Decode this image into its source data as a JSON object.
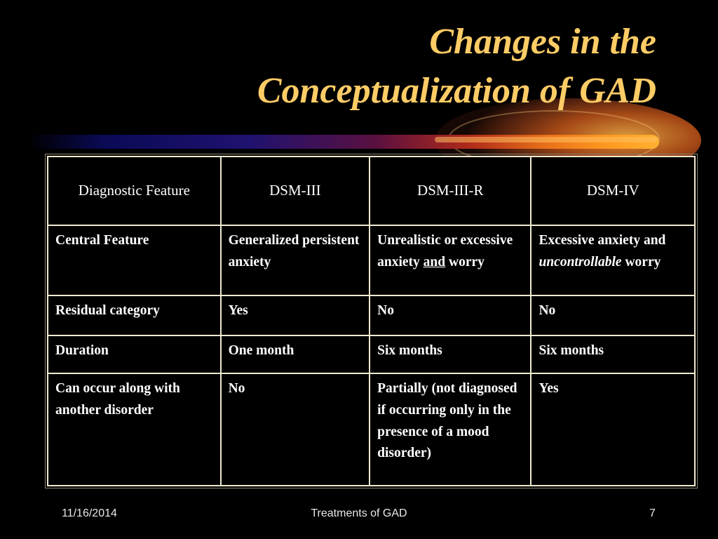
{
  "slide": {
    "title_line_1": "Changes in the",
    "title_line_2": "Conceptualization of GAD"
  },
  "table": {
    "headers": [
      "Diagnostic Feature",
      "DSM-III",
      "DSM-III-R",
      "DSM-IV"
    ],
    "rows": [
      {
        "feature": "Central Feature",
        "dsm3": "Generalized persistent anxiety",
        "dsm3r": {
          "before": "Unrealistic or excessive anxiety ",
          "underlined": "and",
          "after": " worry"
        },
        "dsm4": {
          "before": "Excessive anxiety and ",
          "italic": "uncontrollable",
          "after": " worry"
        }
      },
      {
        "feature": "Residual category",
        "dsm3": "Yes",
        "dsm3r": "No",
        "dsm4": "No"
      },
      {
        "feature": "Duration",
        "dsm3": "One month",
        "dsm3r": "Six months",
        "dsm4": "Six months"
      },
      {
        "feature": "Can occur along with another disorder",
        "dsm3": "No",
        "dsm3r": "Partially (not diagnosed if occurring only in the presence of a mood disorder)",
        "dsm4": "Yes"
      }
    ]
  },
  "footer": {
    "date": "11/16/2014",
    "title": "Treatments of GAD",
    "page": "7"
  },
  "colors": {
    "background": "#000000",
    "title": "#ffcc66",
    "table_border": "#f2ead0",
    "text": "#ffffff"
  }
}
